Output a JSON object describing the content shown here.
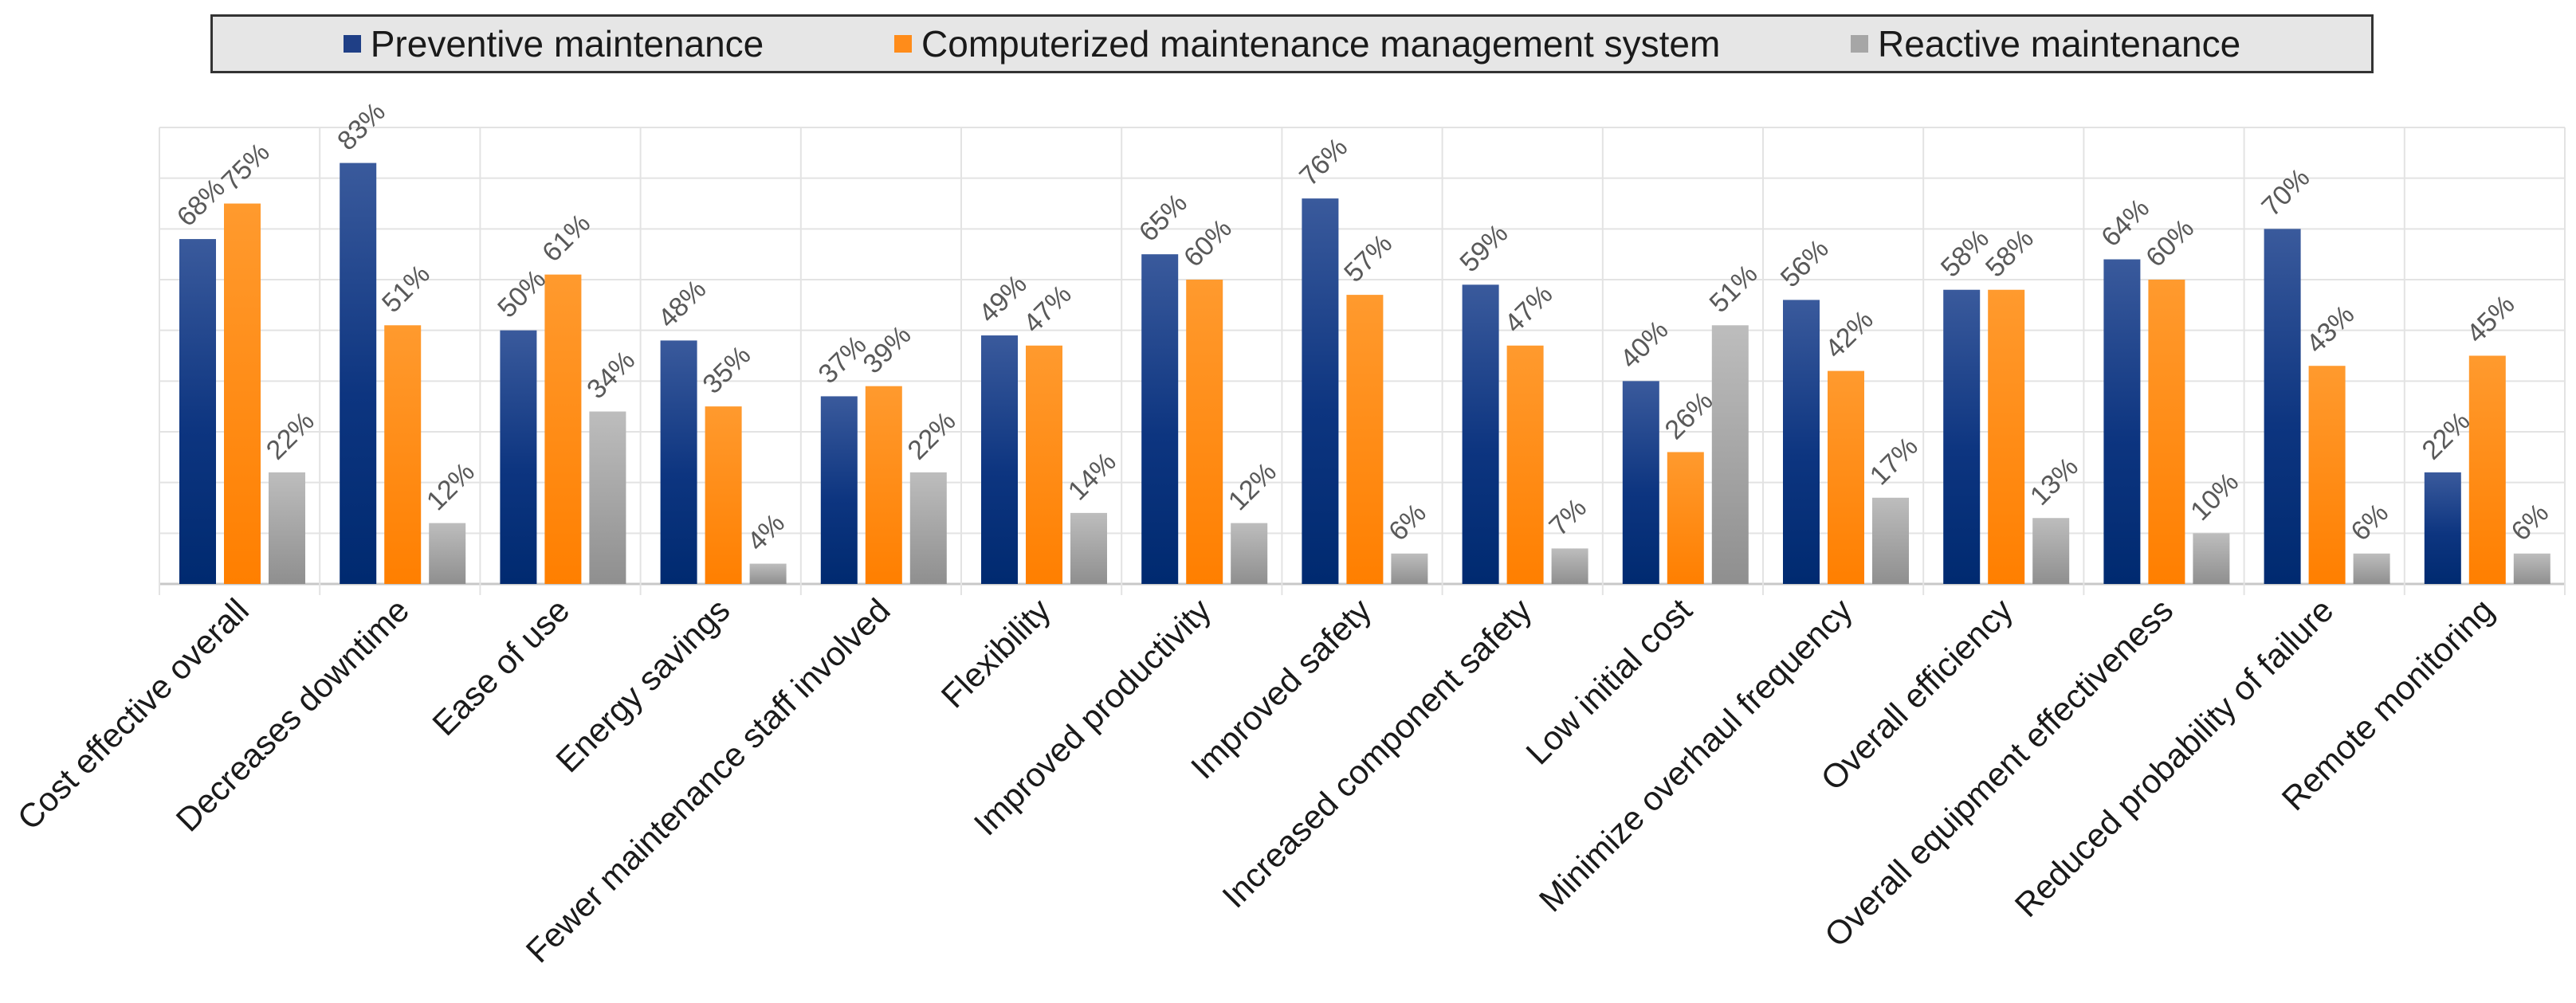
{
  "chart_data": {
    "type": "bar",
    "title": "",
    "xlabel": "",
    "ylabel": "",
    "ylim": [
      0,
      90
    ],
    "grid": true,
    "legend_position": "top",
    "categories": [
      "Cost effective overall",
      "Decreases downtime",
      "Ease of use",
      "Energy savings",
      "Fewer maintenance staff involved",
      "Flexibility",
      "Improved productivity",
      "Improved safety",
      "Increased component safety",
      "Low initial cost",
      "Minimize overhaul frequency",
      "Overall efficiency",
      "Overall equipment effectiveness",
      "Reduced probability of failure",
      "Remote monitoring"
    ],
    "series": [
      {
        "name": "Preventive maintenance",
        "color": "#1f3f86",
        "values": [
          68,
          83,
          50,
          48,
          37,
          49,
          65,
          76,
          59,
          40,
          56,
          58,
          64,
          70,
          22
        ],
        "labels": [
          "68%",
          "83%",
          "50%",
          "48%",
          "37%",
          "49%",
          "65%",
          "76%",
          "59%",
          "40%",
          "56%",
          "58%",
          "64%",
          "70%",
          "22%"
        ]
      },
      {
        "name": "Computerized maintenance management system",
        "color": "#ff8c1a",
        "values": [
          75,
          51,
          61,
          35,
          39,
          47,
          60,
          57,
          47,
          26,
          42,
          58,
          60,
          43,
          45
        ],
        "labels": [
          "75%",
          "51%",
          "61%",
          "35%",
          "39%",
          "47%",
          "60%",
          "57%",
          "47%",
          "26%",
          "42%",
          "58%",
          "60%",
          "43%",
          "45%"
        ]
      },
      {
        "name": "Reactive maintenance",
        "color": "#a6a6a6",
        "values": [
          22,
          12,
          34,
          4,
          22,
          14,
          12,
          6,
          7,
          51,
          17,
          13,
          10,
          6,
          6
        ],
        "labels": [
          "22%",
          "12%",
          "34%",
          "4%",
          "22%",
          "14%",
          "12%",
          "6%",
          "7%",
          "51%",
          "17%",
          "13%",
          "10%",
          "6%",
          "6%"
        ]
      }
    ]
  }
}
